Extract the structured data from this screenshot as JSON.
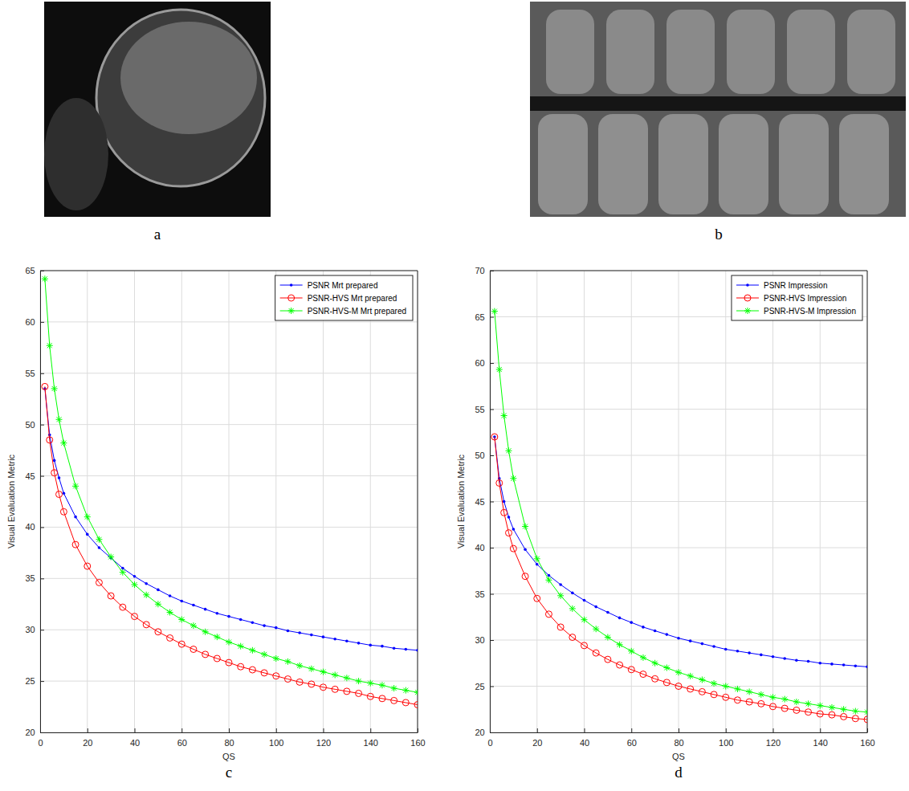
{
  "images": [
    {
      "label": "a"
    },
    {
      "label": "b"
    }
  ],
  "chart_data": [
    {
      "type": "line",
      "label": "c",
      "x_label": "QS",
      "y_label": "Visual Evaluation Metric",
      "x": [
        2,
        4,
        6,
        8,
        10,
        15,
        20,
        25,
        30,
        35,
        40,
        45,
        50,
        55,
        60,
        65,
        70,
        75,
        80,
        85,
        90,
        95,
        100,
        105,
        110,
        115,
        120,
        125,
        130,
        135,
        140,
        145,
        150,
        155,
        160
      ],
      "xlim": [
        0,
        160
      ],
      "xticks": [
        0,
        20,
        40,
        60,
        80,
        100,
        120,
        140,
        160
      ],
      "ylim": [
        20,
        65
      ],
      "yticks": [
        20,
        25,
        30,
        35,
        40,
        45,
        50,
        55,
        60,
        65
      ],
      "grid": true,
      "legend": "upper right",
      "series": [
        {
          "name": "PSNR Mrt prepared",
          "color": "#0000ff",
          "marker": "dot",
          "line_style": "solid",
          "values": [
            53.5,
            49,
            46.5,
            44.8,
            43.3,
            41,
            39.3,
            38,
            37,
            36,
            35.2,
            34.5,
            33.9,
            33.3,
            32.8,
            32.4,
            32,
            31.6,
            31.3,
            31,
            30.7,
            30.4,
            30.2,
            29.9,
            29.7,
            29.5,
            29.3,
            29.1,
            28.9,
            28.7,
            28.5,
            28.4,
            28.2,
            28.1,
            28
          ]
        },
        {
          "name": "PSNR-HVS Mrt prepared",
          "color": "#ff0000",
          "marker": "circle",
          "line_style": "solid",
          "values": [
            53.7,
            48.5,
            45.3,
            43.2,
            41.5,
            38.3,
            36.2,
            34.6,
            33.3,
            32.2,
            31.3,
            30.5,
            29.8,
            29.2,
            28.6,
            28.1,
            27.6,
            27.2,
            26.8,
            26.4,
            26.1,
            25.8,
            25.5,
            25.2,
            24.9,
            24.7,
            24.4,
            24.2,
            24,
            23.8,
            23.5,
            23.3,
            23.1,
            22.9,
            22.7
          ]
        },
        {
          "name": "PSNR-HVS-M Mrt prepared",
          "color": "#00ff00",
          "marker": "asterisk",
          "line_style": "solid",
          "values": [
            64.2,
            57.7,
            53.5,
            50.5,
            48.2,
            44,
            41,
            38.8,
            37.1,
            35.6,
            34.4,
            33.4,
            32.5,
            31.7,
            31,
            30.4,
            29.8,
            29.3,
            28.8,
            28.4,
            28,
            27.6,
            27.2,
            26.9,
            26.5,
            26.2,
            25.9,
            25.6,
            25.3,
            25,
            24.8,
            24.6,
            24.3,
            24.1,
            23.9
          ]
        }
      ]
    },
    {
      "type": "line",
      "label": "d",
      "x_label": "QS",
      "y_label": "Visual Evaluation Metric",
      "x": [
        2,
        4,
        6,
        8,
        10,
        15,
        20,
        25,
        30,
        35,
        40,
        45,
        50,
        55,
        60,
        65,
        70,
        75,
        80,
        85,
        90,
        95,
        100,
        105,
        110,
        115,
        120,
        125,
        130,
        135,
        140,
        145,
        150,
        155,
        160
      ],
      "xlim": [
        0,
        160
      ],
      "xticks": [
        0,
        20,
        40,
        60,
        80,
        100,
        120,
        140,
        160
      ],
      "ylim": [
        20,
        70
      ],
      "yticks": [
        20,
        25,
        30,
        35,
        40,
        45,
        50,
        55,
        60,
        65,
        70
      ],
      "grid": true,
      "legend": "upper right",
      "series": [
        {
          "name": "PSNR Impression",
          "color": "#0000ff",
          "marker": "dot",
          "line_style": "solid",
          "values": [
            52,
            47.5,
            45,
            43.3,
            42,
            39.8,
            38.2,
            37,
            36,
            35.1,
            34.3,
            33.6,
            33,
            32.4,
            31.9,
            31.4,
            31,
            30.6,
            30.2,
            29.9,
            29.6,
            29.3,
            29,
            28.8,
            28.6,
            28.4,
            28.2,
            28,
            27.8,
            27.7,
            27.5,
            27.4,
            27.3,
            27.2,
            27.1
          ]
        },
        {
          "name": "PSNR-HVS Impression",
          "color": "#ff0000",
          "marker": "circle",
          "line_style": "solid",
          "values": [
            52,
            47,
            43.8,
            41.6,
            39.9,
            36.9,
            34.5,
            32.8,
            31.4,
            30.3,
            29.4,
            28.6,
            27.9,
            27.3,
            26.8,
            26.3,
            25.8,
            25.4,
            25,
            24.7,
            24.4,
            24.1,
            23.8,
            23.5,
            23.3,
            23.1,
            22.8,
            22.6,
            22.4,
            22.2,
            22,
            21.9,
            21.7,
            21.5,
            21.4
          ]
        },
        {
          "name": "PSNR-HVS-M Impression",
          "color": "#00ff00",
          "marker": "asterisk",
          "line_style": "solid",
          "values": [
            65.6,
            59.3,
            54.3,
            50.5,
            47.5,
            42.3,
            38.8,
            36.5,
            34.8,
            33.4,
            32.2,
            31.2,
            30.3,
            29.5,
            28.8,
            28.1,
            27.5,
            27,
            26.5,
            26.1,
            25.7,
            25.3,
            25,
            24.7,
            24.4,
            24.1,
            23.8,
            23.6,
            23.3,
            23.1,
            22.9,
            22.7,
            22.5,
            22.3,
            22.2
          ]
        }
      ]
    }
  ]
}
